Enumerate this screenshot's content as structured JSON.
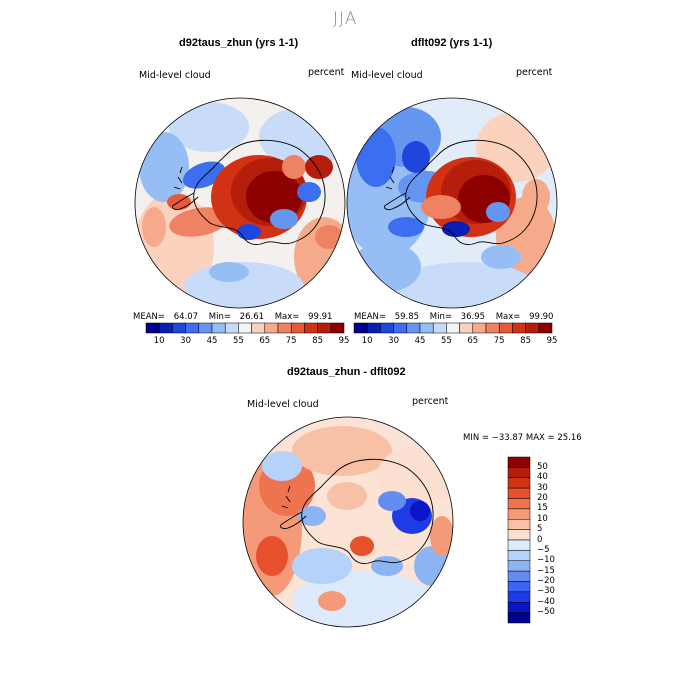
{
  "season": "JJA",
  "panels": [
    {
      "title": "d92taus_zhun (yrs 1-1)",
      "left_label": "Mid-level cloud",
      "right_label": "percent",
      "mean_label": "MEAN=",
      "mean": "64.07",
      "min_label": "Min=",
      "min": "26.61",
      "max_label": "Max=",
      "max": "99.91"
    },
    {
      "title": "dflt092 (yrs 1-1)",
      "left_label": "Mid-level cloud",
      "right_label": "percent",
      "mean_label": "MEAN=",
      "mean": "59.85",
      "min_label": "Min=",
      "min": "36.95",
      "max_label": "Max=",
      "max": "99.90"
    }
  ],
  "diff": {
    "title": "d92taus_zhun - dflt092",
    "left_label": "Mid-level cloud",
    "right_label": "percent",
    "minmax_text": "MIN = −33.87 MAX =   25.16"
  },
  "colors": {
    "abs_scale": [
      "#00008c",
      "#0a1eb4",
      "#1e46dc",
      "#3c6ef0",
      "#6496f0",
      "#96bef5",
      "#c8dcfa",
      "#f5f5f5",
      "#fad2be",
      "#f5aa8c",
      "#f08264",
      "#e65a3c",
      "#d23214",
      "#b41e0a",
      "#8c0000"
    ],
    "diff_scale": [
      "#000090",
      "#0a14c8",
      "#1e3ce6",
      "#3c64f0",
      "#648cf0",
      "#8cb4f5",
      "#b4d2fa",
      "#dceafc",
      "#fbe0d2",
      "#f8c0a4",
      "#f59a78",
      "#ee7450",
      "#e6502d",
      "#d23214",
      "#b41e0a",
      "#8c0000"
    ]
  },
  "chart_data": [
    {
      "type": "heatmap",
      "title": "d92taus_zhun (yrs 1-1)",
      "variable": "Mid-level cloud",
      "units": "percent",
      "projection": "south polar stereographic",
      "colorbar_ticks": [
        "10",
        "30",
        "45",
        "55",
        "65",
        "75",
        "85",
        "95"
      ],
      "stats": {
        "mean": 64.07,
        "min": 26.61,
        "max": 99.91
      }
    },
    {
      "type": "heatmap",
      "title": "dflt092 (yrs 1-1)",
      "variable": "Mid-level cloud",
      "units": "percent",
      "projection": "south polar stereographic",
      "colorbar_ticks": [
        "10",
        "30",
        "45",
        "55",
        "65",
        "75",
        "85",
        "95"
      ],
      "stats": {
        "mean": 59.85,
        "min": 36.95,
        "max": 99.9
      }
    },
    {
      "type": "heatmap",
      "title": "d92taus_zhun - dflt092",
      "variable": "Mid-level cloud",
      "units": "percent",
      "projection": "south polar stereographic",
      "colorbar_ticks": [
        "50",
        "40",
        "30",
        "20",
        "15",
        "10",
        "5",
        "0",
        "−5",
        "−10",
        "−15",
        "−20",
        "−30",
        "−40",
        "−50"
      ],
      "stats": {
        "min": -33.87,
        "max": 25.16
      }
    }
  ]
}
